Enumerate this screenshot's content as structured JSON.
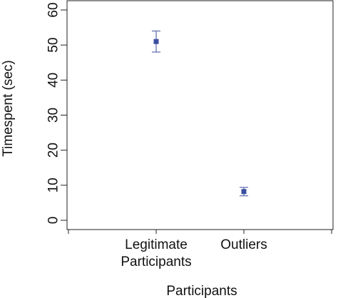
{
  "chart_data": {
    "type": "scatter",
    "title": "",
    "xlabel": "Participants",
    "ylabel": "Timespent (sec)",
    "ylim": [
      0,
      60
    ],
    "yticks": [
      0,
      10,
      20,
      30,
      40,
      50,
      60
    ],
    "categories": [
      {
        "lines": [
          "Legitimate",
          "Participants"
        ]
      },
      {
        "lines": [
          "Outliers"
        ]
      }
    ],
    "points": [
      {
        "category": "Legitimate Participants",
        "mean": 51,
        "lower": 48,
        "upper": 54
      },
      {
        "category": "Outliers",
        "mean": 8.2,
        "lower": 7,
        "upper": 9.4
      }
    ],
    "grid": false,
    "marker_color": "#3b4fa0",
    "errorbar_color": "#6a74b0"
  }
}
